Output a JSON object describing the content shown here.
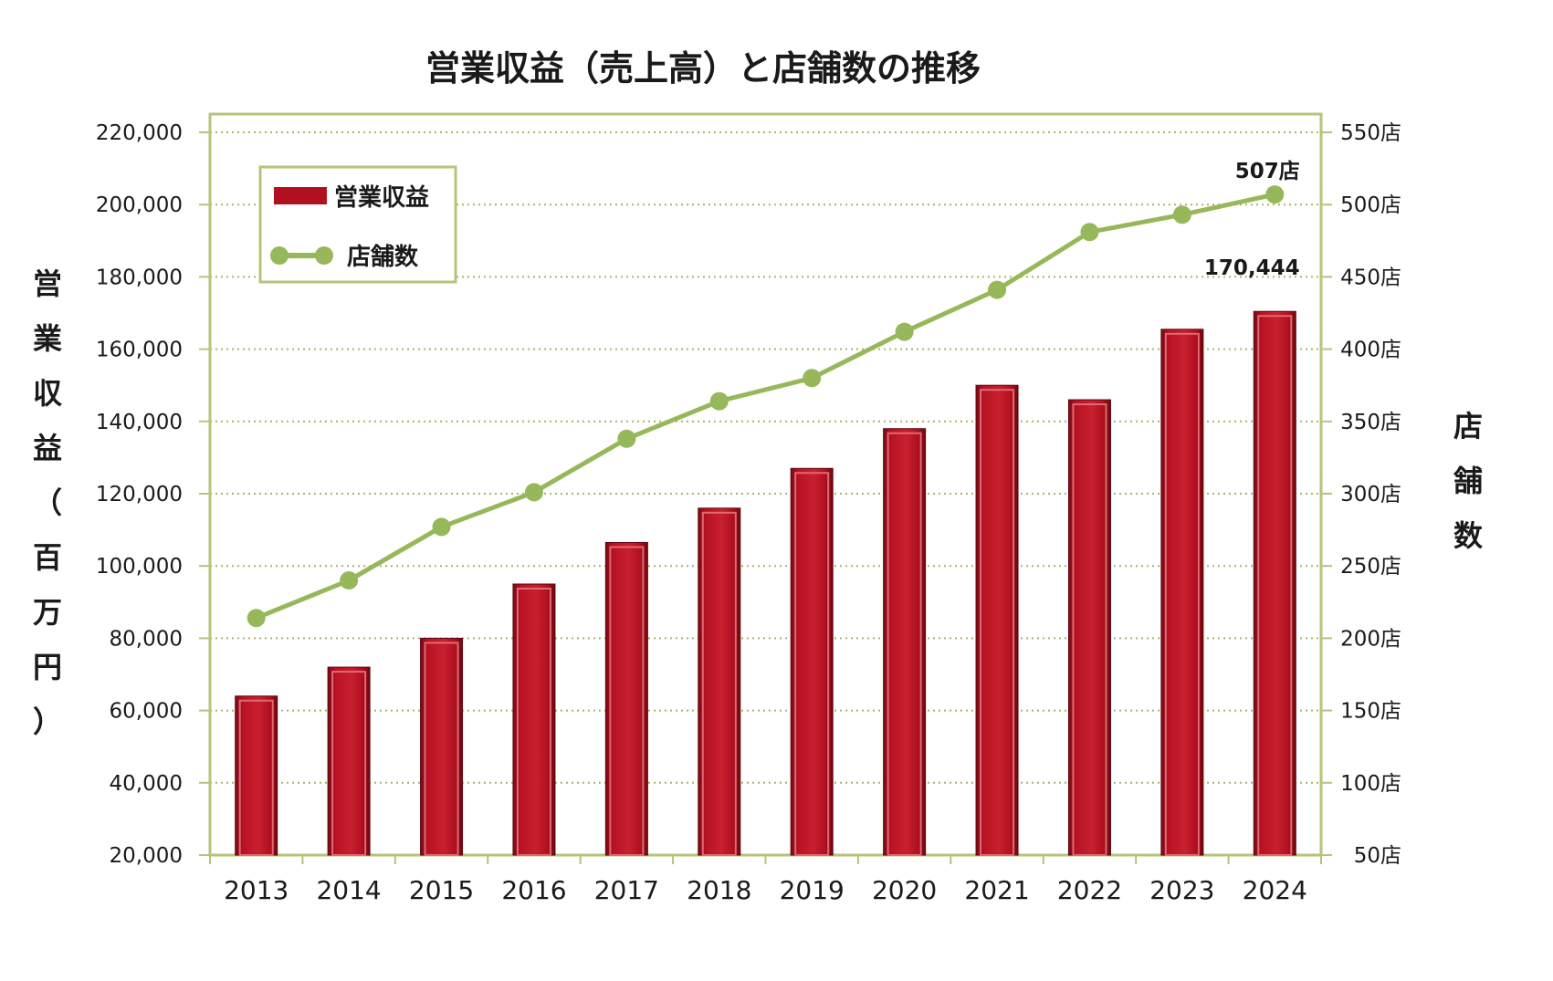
{
  "chart_data": {
    "type": "bar",
    "title": "営業収益（売上高）と店舗数の推移",
    "categories": [
      "2013",
      "2014",
      "2015",
      "2016",
      "2017",
      "2018",
      "2019",
      "2020",
      "2021",
      "2022",
      "2023",
      "2024"
    ],
    "series": [
      {
        "name": "営業収益",
        "type": "bar",
        "axis": "left",
        "color": "#b01020",
        "values": [
          64000,
          72000,
          80000,
          95000,
          106500,
          116000,
          127000,
          138000,
          150000,
          146000,
          165500,
          170444
        ]
      },
      {
        "name": "店舗数",
        "type": "line",
        "axis": "right",
        "color": "#97b85a",
        "values": [
          214,
          240,
          277,
          301,
          338,
          364,
          380,
          412,
          441,
          481,
          493,
          507
        ]
      }
    ],
    "ylabel_left": "営業収益（百万円）",
    "ylabel_right": "店舗数",
    "ylim_left": [
      20000,
      220000
    ],
    "ylim_right": [
      50,
      550
    ],
    "yticks_left": [
      "20,000",
      "40,000",
      "60,000",
      "80,000",
      "100,000",
      "120,000",
      "140,000",
      "160,000",
      "180,000",
      "200,000",
      "220,000"
    ],
    "yticks_right": [
      "50店",
      "100店",
      "150店",
      "200店",
      "250店",
      "300店",
      "350店",
      "400店",
      "450店",
      "500店",
      "550店"
    ],
    "grid": true,
    "legend_position": "top-left",
    "annotations": [
      {
        "text": "507店",
        "category": "2024",
        "series": "店舗数"
      },
      {
        "text": "170,444",
        "category": "2024",
        "series": "営業収益"
      }
    ],
    "axis_color": "#b6c47a",
    "grid_color": "#a8b468"
  }
}
